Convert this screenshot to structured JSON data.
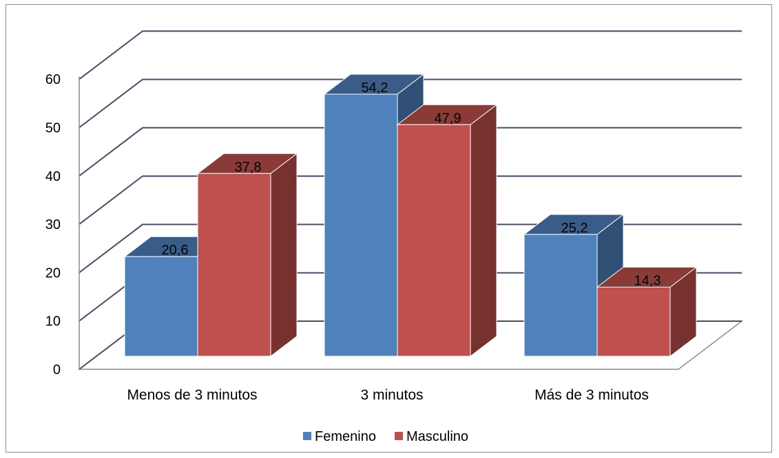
{
  "chart_data": {
    "type": "bar",
    "categories": [
      "Menos de 3 minutos",
      "3 minutos",
      "Más de 3 minutos"
    ],
    "series": [
      {
        "name": "Femenino",
        "values": [
          20.6,
          54.2,
          25.2
        ],
        "labels": [
          "20,6",
          "54,2",
          "25,2"
        ],
        "color": "#4f81bd"
      },
      {
        "name": "Masculino",
        "values": [
          37.8,
          47.9,
          14.3
        ],
        "labels": [
          "37,8",
          "47,9",
          "14,3"
        ],
        "color": "#c0504d"
      }
    ],
    "yticks": [
      "0",
      "10",
      "20",
      "30",
      "40",
      "50",
      "60"
    ],
    "ylim": [
      0,
      60
    ],
    "grid": true,
    "legend_position": "bottom",
    "style": "3d-clustered-column"
  }
}
